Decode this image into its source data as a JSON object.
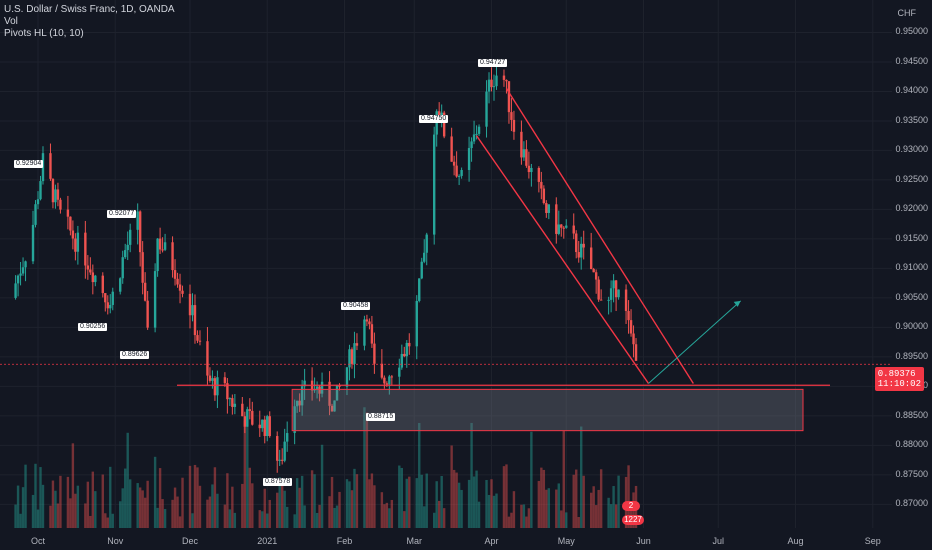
{
  "legend": {
    "symbol": "U.S. Dollar / Swiss Franc, 1D, OANDA",
    "volume": "Vol",
    "indicator": "Pivots HL (10, 10)"
  },
  "price_axis": {
    "currency": "CHF",
    "ticks": [
      "0.95000",
      "0.94500",
      "0.94000",
      "0.93500",
      "0.93000",
      "0.92500",
      "0.92000",
      "0.91500",
      "0.91000",
      "0.90500",
      "0.90000",
      "0.89500",
      "0.89000",
      "0.88500",
      "0.88000",
      "0.87500",
      "0.87000"
    ],
    "last_price": "0.89376",
    "countdown": "11:10:02"
  },
  "time_axis": {
    "ticks": [
      "Oct",
      "Nov",
      "Dec",
      "2021",
      "Feb",
      "Mar",
      "Apr",
      "May",
      "Jun",
      "Jul",
      "Aug",
      "Sep"
    ]
  },
  "pivot_labels": [
    "0.92904",
    "0.92077",
    "0.90256",
    "0.89626",
    "0.90458",
    "0.94750",
    "0.94727",
    "0.88715",
    "0.87578"
  ],
  "volume_icons": {
    "count": "2",
    "label": "1227"
  },
  "colors": {
    "background": "#131722",
    "up": "#26a69a",
    "down": "#ef5350",
    "channel": "#f23645",
    "zone_fill": "#787b86",
    "arrow": "#26a69a"
  },
  "chart_data": {
    "type": "candlestick",
    "title": "U.S. Dollar / Swiss Franc, 1D, OANDA",
    "ylim": [
      0.866,
      0.9555
    ],
    "close_path": [
      [
        "Sep 20",
        0.905
      ],
      [
        "Sep 28",
        0.915
      ],
      [
        "Oct 3",
        0.928
      ],
      [
        "Oct 10",
        0.919
      ],
      [
        "Oct 20",
        0.912
      ],
      [
        "Oct 30",
        0.904
      ],
      [
        "Nov 5",
        0.913
      ],
      [
        "Nov 10",
        0.918
      ],
      [
        "Nov 14",
        0.898
      ],
      [
        "Nov 18",
        0.915
      ],
      [
        "Nov 25",
        0.91
      ],
      [
        "Dec 2",
        0.902
      ],
      [
        "Dec 8",
        0.891
      ],
      [
        "Dec 15",
        0.889
      ],
      [
        "Dec 22",
        0.885
      ],
      [
        "Jan 2",
        0.883
      ],
      [
        "Jan 6",
        0.876
      ],
      [
        "Jan 11",
        0.888
      ],
      [
        "Jan 20",
        0.89
      ],
      [
        "Jan 28",
        0.887
      ],
      [
        "Feb 5",
        0.897
      ],
      [
        "Feb 10",
        0.903
      ],
      [
        "Feb 14",
        0.889
      ],
      [
        "Feb 20",
        0.893
      ],
      [
        "Feb 28",
        0.898
      ],
      [
        "Mar 5",
        0.912
      ],
      [
        "Mar 10",
        0.938
      ],
      [
        "Mar 15",
        0.93
      ],
      [
        "Mar 20",
        0.925
      ],
      [
        "Mar 25",
        0.932
      ],
      [
        "Apr 1",
        0.942
      ],
      [
        "Apr 5",
        0.944
      ],
      [
        "Apr 10",
        0.934
      ],
      [
        "Apr 18",
        0.925
      ],
      [
        "Apr 25",
        0.918
      ],
      [
        "May 3",
        0.915
      ],
      [
        "May 10",
        0.911
      ],
      [
        "May 17",
        0.903
      ],
      [
        "May 22",
        0.908
      ],
      [
        "May 27",
        0.898
      ],
      [
        "May 31",
        0.894
      ]
    ],
    "channel": {
      "upper": [
        [
          "Apr 7",
          0.9405
        ],
        [
          "Jun 21",
          0.8905
        ]
      ],
      "lower": [
        [
          "Mar 26",
          0.9325
        ],
        [
          "Jun 3",
          0.8905
        ]
      ]
    },
    "support_line": 0.8902,
    "zone": [
      0.8825,
      0.8895
    ],
    "projection_arrow": [
      [
        "Jun 3",
        0.8905
      ],
      [
        "Jul 10",
        0.9045
      ]
    ]
  }
}
